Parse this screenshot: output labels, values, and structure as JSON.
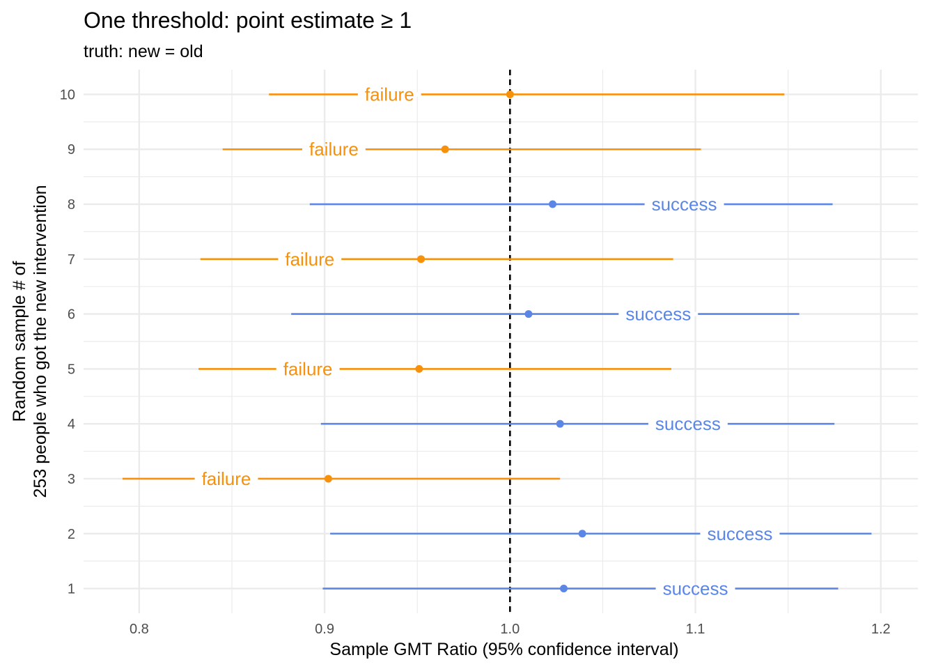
{
  "chart_data": {
    "type": "scatter",
    "subtype": "forest-plot",
    "title": "One threshold: point estimate ≥ 1",
    "subtitle": "truth: new = old",
    "xlabel": "Sample GMT Ratio (95% confidence interval)",
    "ylabel_lines": [
      "Random sample # of",
      "253 people who got the new intervention"
    ],
    "xlim": [
      0.77,
      1.22
    ],
    "ylim": [
      0.55,
      10.45
    ],
    "x_ticks": [
      0.8,
      0.9,
      1.0,
      1.1,
      1.2
    ],
    "x_tick_labels": [
      "0.8",
      "0.9",
      "1.0",
      "1.1",
      "1.2"
    ],
    "y_ticks": [
      1,
      2,
      3,
      4,
      5,
      6,
      7,
      8,
      9,
      10
    ],
    "y_tick_labels": [
      "1",
      "2",
      "3",
      "4",
      "5",
      "6",
      "7",
      "8",
      "9",
      "10"
    ],
    "grid": true,
    "reference_line": {
      "x": 1.0,
      "style": "dashed"
    },
    "colors": {
      "success": "#5b86e5",
      "failure": "#f7900b",
      "grid": "#ebebeb",
      "reference": "#000000"
    },
    "points": [
      {
        "sample": 1,
        "estimate": 1.029,
        "lower": 0.899,
        "upper": 1.177,
        "result": "success",
        "label_x": 1.1
      },
      {
        "sample": 2,
        "estimate": 1.039,
        "lower": 0.903,
        "upper": 1.195,
        "result": "success",
        "label_x": 1.124
      },
      {
        "sample": 3,
        "estimate": 0.902,
        "lower": 0.791,
        "upper": 1.027,
        "result": "failure",
        "label_x": 0.847
      },
      {
        "sample": 4,
        "estimate": 1.027,
        "lower": 0.898,
        "upper": 1.175,
        "result": "success",
        "label_x": 1.096
      },
      {
        "sample": 5,
        "estimate": 0.951,
        "lower": 0.832,
        "upper": 1.087,
        "result": "failure",
        "label_x": 0.891
      },
      {
        "sample": 6,
        "estimate": 1.01,
        "lower": 0.882,
        "upper": 1.156,
        "result": "success",
        "label_x": 1.08
      },
      {
        "sample": 7,
        "estimate": 0.952,
        "lower": 0.833,
        "upper": 1.088,
        "result": "failure",
        "label_x": 0.892
      },
      {
        "sample": 8,
        "estimate": 1.023,
        "lower": 0.892,
        "upper": 1.174,
        "result": "success",
        "label_x": 1.094
      },
      {
        "sample": 9,
        "estimate": 0.965,
        "lower": 0.845,
        "upper": 1.103,
        "result": "failure",
        "label_x": 0.905
      },
      {
        "sample": 10,
        "estimate": 1.0,
        "lower": 0.87,
        "upper": 1.148,
        "result": "failure",
        "label_x": 0.935
      }
    ]
  }
}
